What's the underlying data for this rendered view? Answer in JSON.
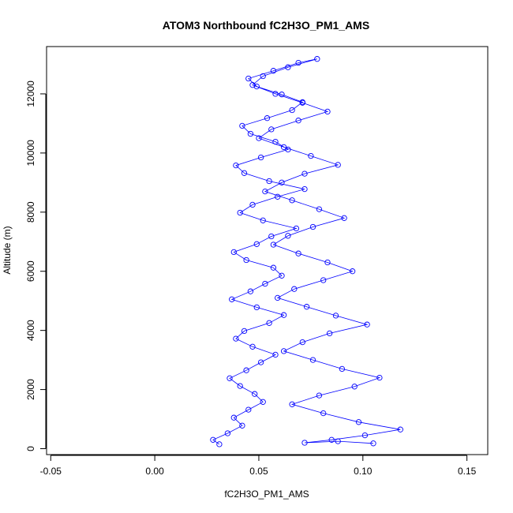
{
  "chart_data": {
    "type": "scatter",
    "title": "ATOM3 Northbound fC2H3O_PM1_AMS",
    "xlabel": "fC2H3O_PM1_AMS",
    "ylabel": "Altitude (m)",
    "xlim": [
      -0.052,
      0.16
    ],
    "ylim": [
      -200,
      13600
    ],
    "x_ticks": [
      -0.05,
      0.0,
      0.05,
      0.1,
      0.15
    ],
    "x_tick_labels": [
      "-0.05",
      "0.00",
      "0.05",
      "0.10",
      "0.15"
    ],
    "y_ticks": [
      0,
      2000,
      4000,
      6000,
      8000,
      10000,
      12000
    ],
    "y_tick_labels": [
      "0",
      "2000",
      "4000",
      "6000",
      "8000",
      "10000",
      "12000"
    ],
    "grid": false,
    "legend": "none",
    "series_color": "#0000ff",
    "marker": "open-circle",
    "connect_points": true,
    "series": [
      {
        "x": [
          0.031,
          0.028,
          0.035,
          0.042,
          0.038,
          0.045,
          0.052,
          0.048,
          0.041,
          0.036,
          0.044,
          0.051,
          0.058,
          0.047,
          0.039,
          0.043,
          0.055,
          0.062,
          0.049,
          0.037,
          0.046,
          0.053,
          0.061,
          0.057,
          0.044,
          0.038,
          0.049,
          0.056,
          0.068,
          0.052,
          0.041,
          0.047,
          0.059,
          0.072,
          0.055,
          0.043,
          0.039,
          0.051,
          0.064,
          0.058,
          0.046,
          0.042,
          0.054,
          0.066,
          0.071,
          0.061,
          0.049,
          0.045,
          0.057,
          0.069,
          0.078,
          0.064,
          0.052,
          0.047,
          0.058,
          0.071,
          0.083,
          0.069,
          0.056,
          0.05,
          0.062,
          0.075,
          0.088,
          0.072,
          0.061,
          0.053,
          0.066,
          0.079,
          0.091,
          0.076,
          0.064,
          0.057,
          0.069,
          0.083,
          0.095,
          0.081,
          0.067,
          0.059,
          0.073,
          0.087,
          0.102,
          0.084,
          0.071,
          0.062,
          0.076,
          0.09,
          0.108,
          0.096,
          0.079,
          0.066,
          0.081,
          0.098,
          0.118,
          0.101,
          0.085,
          0.072,
          0.088,
          0.105
        ],
        "y": [
          150,
          300,
          520,
          780,
          1050,
          1320,
          1580,
          1850,
          2120,
          2380,
          2650,
          2920,
          3180,
          3450,
          3720,
          3980,
          4250,
          4520,
          4780,
          5050,
          5320,
          5580,
          5850,
          6120,
          6380,
          6650,
          6920,
          7180,
          7450,
          7720,
          7980,
          8250,
          8520,
          8780,
          9050,
          9320,
          9580,
          9850,
          10120,
          10380,
          10650,
          10920,
          11180,
          11450,
          11720,
          11980,
          12250,
          12520,
          12780,
          13050,
          13180,
          12900,
          12600,
          12300,
          12000,
          11700,
          11400,
          11100,
          10800,
          10500,
          10200,
          9900,
          9600,
          9300,
          9000,
          8700,
          8400,
          8100,
          7800,
          7500,
          7200,
          6900,
          6600,
          6300,
          6000,
          5700,
          5400,
          5100,
          4800,
          4500,
          4200,
          3900,
          3600,
          3300,
          3000,
          2700,
          2400,
          2100,
          1800,
          1500,
          1200,
          900,
          650,
          450,
          300,
          200,
          250,
          180
        ]
      }
    ]
  }
}
